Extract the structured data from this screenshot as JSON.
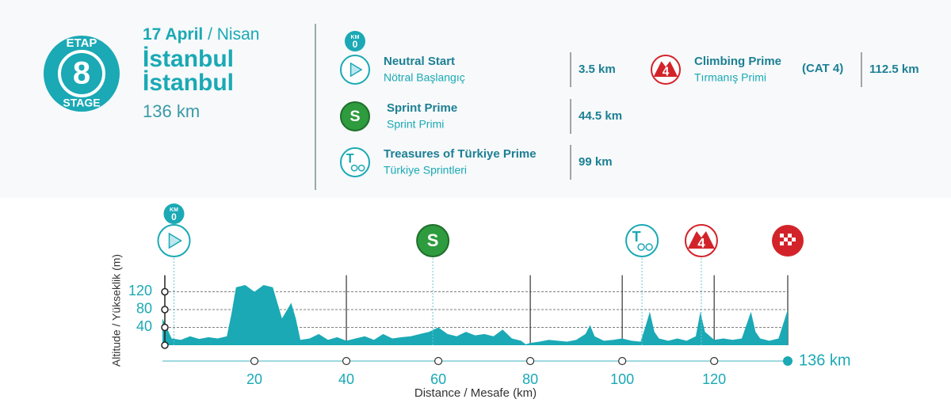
{
  "header": {
    "etap": "ETAP",
    "stage_number": "8",
    "stage": "STAGE",
    "date": "17 April",
    "date_tr": "/ Nisan",
    "start": "İstanbul",
    "finish": "İstanbul",
    "distance": "136 km"
  },
  "km0": {
    "label": "KM",
    "value": "0"
  },
  "legend": [
    {
      "name": "Neutral Start",
      "name_tr": "Nötral Başlangıç",
      "km": "3.5 km"
    },
    {
      "name": "Sprint Prime",
      "name_tr": "Sprint Primi",
      "km": "44.5 km",
      "icon": "S"
    },
    {
      "name": "Treasures of Türkiye Prime",
      "name_tr": "Türkiye Sprintleri",
      "km": "99 km",
      "icon": "T"
    },
    {
      "name": "Climbing Prime",
      "name_tr": "Tırmanış Primi",
      "cat": "(CAT 4)",
      "km": "112.5 km",
      "icon": "4"
    }
  ],
  "chart_data": {
    "type": "area",
    "x": [
      0,
      2,
      4,
      6,
      8,
      10,
      12,
      14,
      15,
      16,
      18,
      20,
      22,
      24,
      26,
      28,
      29,
      30,
      32,
      34,
      36,
      38,
      40,
      42,
      44,
      46,
      48,
      50,
      52,
      54,
      56,
      58,
      60,
      62,
      64,
      66,
      68,
      70,
      72,
      74,
      76,
      78,
      79,
      80,
      82,
      84,
      86,
      88,
      90,
      92,
      93,
      94,
      96,
      98,
      100,
      102,
      104,
      105,
      106,
      107,
      108,
      110,
      112,
      114,
      116,
      117,
      118,
      120,
      122,
      124,
      126,
      127,
      128,
      129,
      130,
      132,
      134,
      136
    ],
    "values": [
      60,
      15,
      12,
      20,
      14,
      18,
      15,
      20,
      70,
      130,
      135,
      120,
      135,
      130,
      60,
      95,
      60,
      12,
      15,
      25,
      12,
      18,
      10,
      15,
      20,
      12,
      25,
      15,
      18,
      20,
      25,
      30,
      40,
      25,
      20,
      30,
      22,
      25,
      20,
      35,
      15,
      10,
      2,
      5,
      8,
      12,
      10,
      8,
      12,
      25,
      45,
      20,
      10,
      12,
      15,
      10,
      8,
      40,
      75,
      30,
      15,
      10,
      15,
      10,
      20,
      75,
      30,
      12,
      15,
      12,
      15,
      45,
      75,
      30,
      15,
      10,
      15,
      80
    ],
    "color": "#1aa9b5",
    "xlim": [
      0,
      136
    ],
    "xticks": [
      20,
      40,
      60,
      80,
      100,
      120
    ],
    "ylim": [
      0,
      150
    ],
    "yticks": [
      40,
      80,
      120
    ],
    "grid": true,
    "x_label": "Distance / Mesafe  (km)",
    "y_label": "Altitude / Yükseklik (m)",
    "end_label": "136 km",
    "markers": [
      2.5,
      58.8,
      104.3,
      117.2,
      136
    ],
    "sector_lines": [
      40,
      80,
      100,
      120,
      136
    ]
  }
}
